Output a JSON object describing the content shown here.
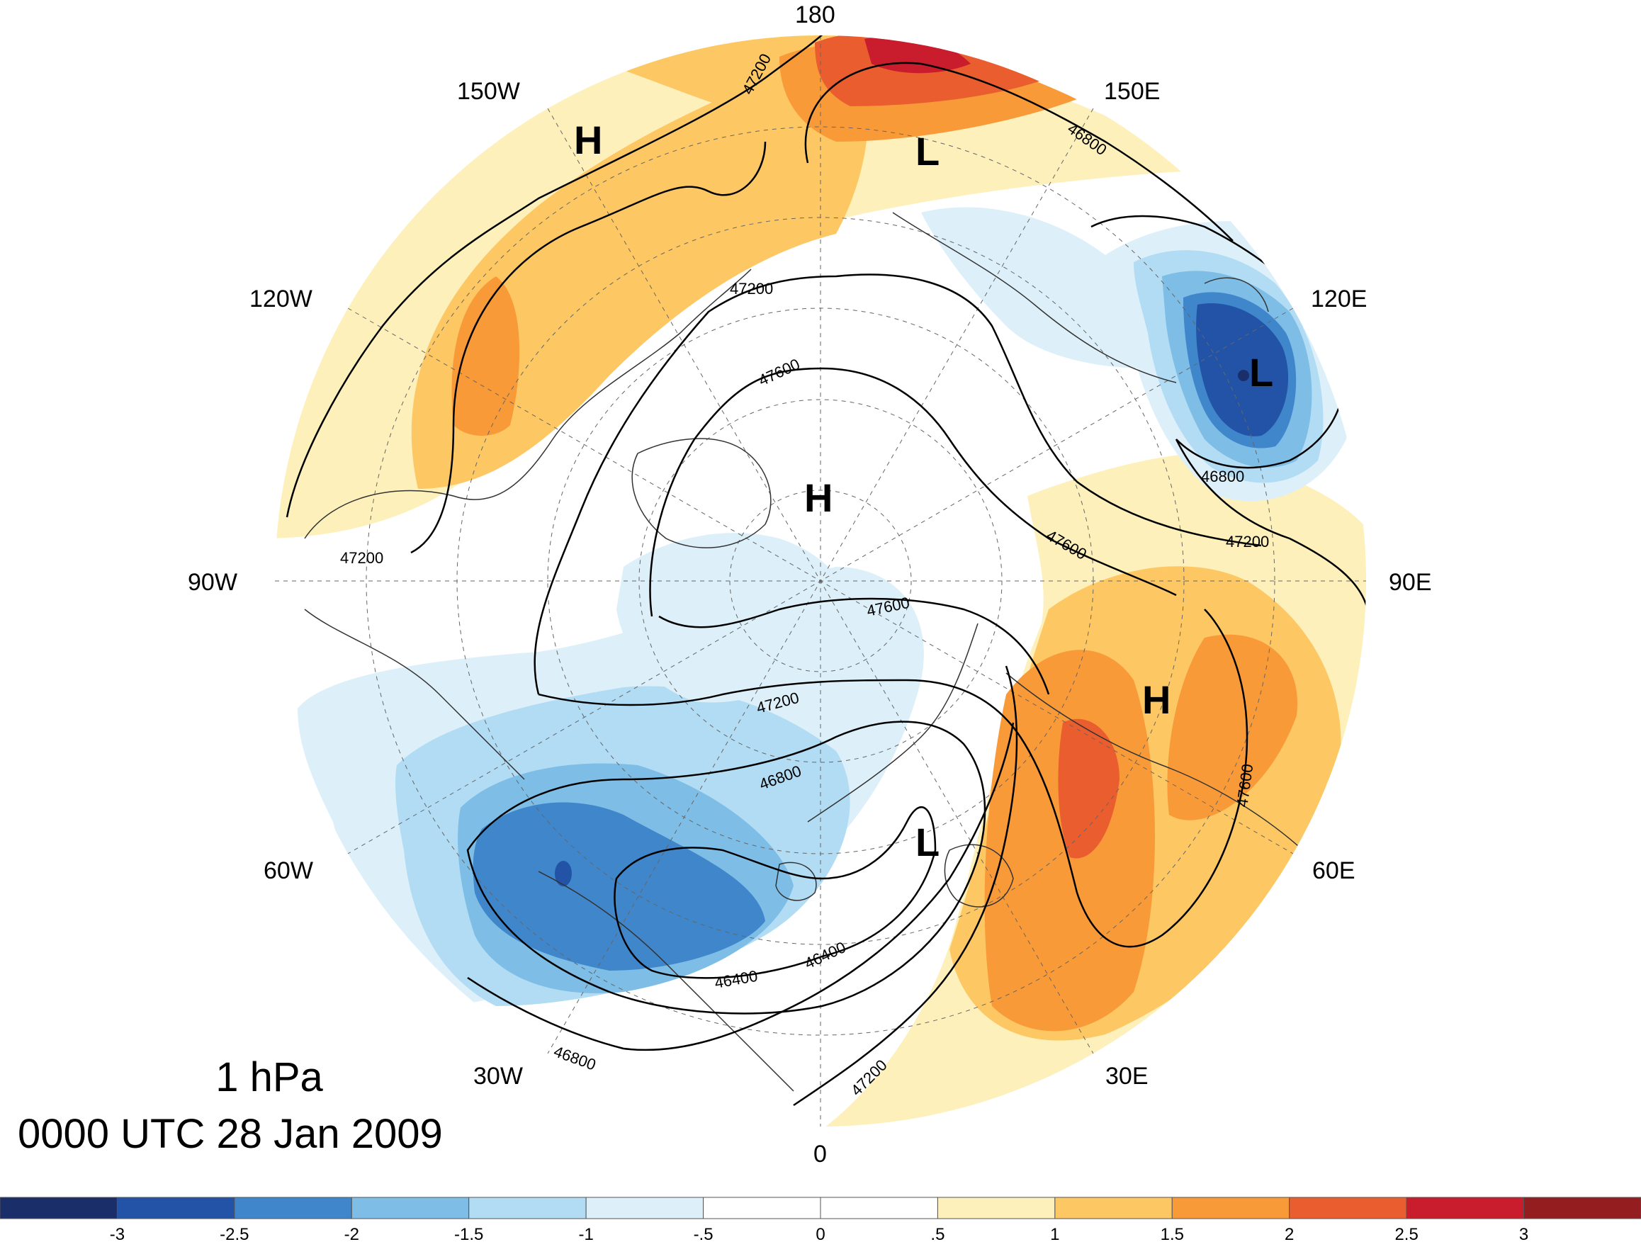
{
  "title": {
    "level": "1 hPa",
    "time": "0000 UTC 28 Jan 2009"
  },
  "longitude_labels": [
    {
      "lon": 180,
      "text": "180"
    },
    {
      "lon": 150,
      "text": "150E"
    },
    {
      "lon": 120,
      "text": "120E"
    },
    {
      "lon": 90,
      "text": "90E"
    },
    {
      "lon": 60,
      "text": "60E"
    },
    {
      "lon": 30,
      "text": "30E"
    },
    {
      "lon": 0,
      "text": "0"
    },
    {
      "lon": -30,
      "text": "30W"
    },
    {
      "lon": -60,
      "text": "60W"
    },
    {
      "lon": -90,
      "text": "90W"
    },
    {
      "lon": -120,
      "text": "120W"
    },
    {
      "lon": -150,
      "text": "150W"
    }
  ],
  "centers": [
    {
      "type": "H",
      "text": "H",
      "region": "north-pole"
    },
    {
      "type": "H",
      "text": "H",
      "region": "alaska"
    },
    {
      "type": "H",
      "text": "H",
      "region": "siberia"
    },
    {
      "type": "L",
      "text": "L",
      "region": "east-siberia"
    },
    {
      "type": "L",
      "text": "L",
      "region": "northeast-asia"
    },
    {
      "type": "L",
      "text": "L",
      "region": "scandinavia"
    }
  ],
  "contour_labels": [
    "47200",
    "46800",
    "47200",
    "47600",
    "46800",
    "47200",
    "47200",
    "47600",
    "47600",
    "47600",
    "47200",
    "46800",
    "46400",
    "46400",
    "46800",
    "47200"
  ],
  "colorbar": {
    "colors": [
      "#1a2f6a",
      "#2253a6",
      "#3f86cb",
      "#7dbde6",
      "#b1dcf3",
      "#ddf0fa",
      "#ffffff",
      "#ffffff",
      "#fdf0bb",
      "#fdc863",
      "#f99a39",
      "#ea5d2f",
      "#c91c2c",
      "#941d1f"
    ],
    "tick_labels": [
      "-3",
      "-2.5",
      "-2",
      "-1.5",
      "-1",
      "-.5",
      "0",
      ".5",
      "1",
      "1.5",
      "2",
      "2.5",
      "3"
    ]
  },
  "colors": {
    "warm_1": "#fdf0bb",
    "warm_2": "#fdc863",
    "warm_3": "#f99a39",
    "warm_4": "#ea5d2f",
    "warm_5": "#c91c2c",
    "cool_1": "#ddf0fa",
    "cool_2": "#b1dcf3",
    "cool_3": "#7dbde6",
    "cool_4": "#3f86cb",
    "cool_5": "#2253a6",
    "cool_6": "#1a2f6a"
  }
}
